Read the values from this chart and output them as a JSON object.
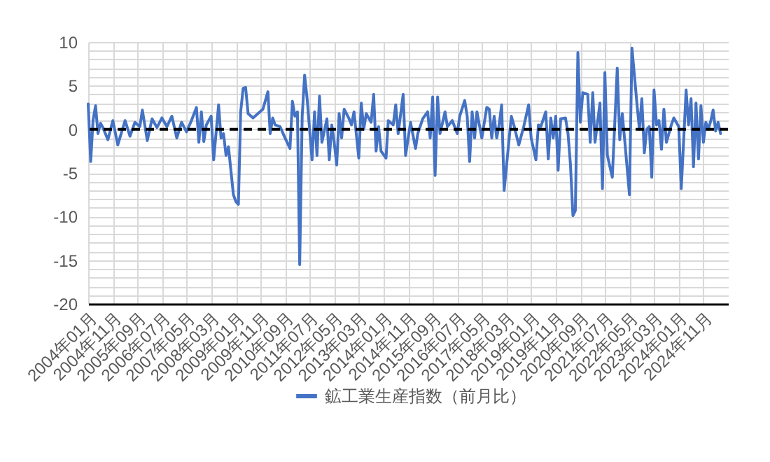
{
  "chart_data": {
    "type": "line",
    "legend": "bottom",
    "grid": true,
    "line_style": "solid",
    "marker": "none",
    "xlim": [
      "2004-01",
      "2025-09"
    ],
    "ylim": [
      -20,
      10
    ],
    "xticks": [
      {
        "value": "2004-01",
        "label": "2004年01月"
      },
      {
        "value": "2004-11",
        "label": "2004年11月"
      },
      {
        "value": "2005-09",
        "label": "2005年09月"
      },
      {
        "value": "2006-07",
        "label": "2006年07月"
      },
      {
        "value": "2007-05",
        "label": "2007年05月"
      },
      {
        "value": "2008-03",
        "label": "2008年03月"
      },
      {
        "value": "2009-01",
        "label": "2009年01月"
      },
      {
        "value": "2009-11",
        "label": "2009年11月"
      },
      {
        "value": "2010-09",
        "label": "2010年09月"
      },
      {
        "value": "2011-07",
        "label": "2011年07月"
      },
      {
        "value": "2012-05",
        "label": "2012年05月"
      },
      {
        "value": "2013-03",
        "label": "2013年03月"
      },
      {
        "value": "2014-01",
        "label": "2014年01月"
      },
      {
        "value": "2014-11",
        "label": "2014年11月"
      },
      {
        "value": "2015-09",
        "label": "2015年09月"
      },
      {
        "value": "2016-07",
        "label": "2016年07月"
      },
      {
        "value": "2017-05",
        "label": "2017年05月"
      },
      {
        "value": "2018-03",
        "label": "2018年03月"
      },
      {
        "value": "2019-01",
        "label": "2019年01月"
      },
      {
        "value": "2019-11",
        "label": "2019年11月"
      },
      {
        "value": "2020-09",
        "label": "2020年09月"
      },
      {
        "value": "2021-07",
        "label": "2021年07月"
      },
      {
        "value": "2022-05",
        "label": "2022年05月"
      },
      {
        "value": "2023-03",
        "label": "2023年03月"
      },
      {
        "value": "2024-01",
        "label": "2024年01月"
      },
      {
        "value": "2024-11",
        "label": "2024年11月"
      }
    ],
    "yticks": [
      -20,
      {
        "value": -19,
        "label": null
      },
      {
        "value": -18,
        "label": null
      },
      {
        "value": -17,
        "label": null
      },
      {
        "value": -16,
        "label": null
      },
      -15,
      {
        "value": -14,
        "label": null
      },
      {
        "value": -13,
        "label": null
      },
      {
        "value": -12,
        "label": null
      },
      {
        "value": -11,
        "label": null
      },
      -10,
      {
        "value": -9,
        "label": null
      },
      {
        "value": -8,
        "label": null
      },
      {
        "value": -7,
        "label": null
      },
      {
        "value": -6,
        "label": null
      },
      -5,
      {
        "value": -4,
        "label": null
      },
      {
        "value": -3,
        "label": null
      },
      {
        "value": -2,
        "label": null
      },
      {
        "value": -1,
        "label": null
      },
      0,
      {
        "value": 1,
        "label": null
      },
      {
        "value": 2,
        "label": null
      },
      {
        "value": 3,
        "label": null
      },
      {
        "value": 4,
        "label": null
      },
      5,
      {
        "value": 6,
        "label": null
      },
      {
        "value": 7,
        "label": null
      },
      {
        "value": 8,
        "label": null
      },
      {
        "value": 9,
        "label": null
      },
      10
    ],
    "ref_lines": [
      {
        "axis": "y",
        "value": 0,
        "color": "#000000",
        "line_style": "dashed"
      }
    ],
    "series": [
      {
        "name": "鉱工業生産指数（前月比）",
        "color": "#4472c4",
        "x": [
          "2004-01",
          "2004-02",
          "2004-03",
          "2004-04",
          "2004-05",
          "2004-06",
          "2004-07",
          "2004-08",
          "2004-09",
          "2004-11",
          "2005-01",
          "2005-04",
          "2005-06",
          "2005-08",
          "2005-10",
          "2005-11",
          "2006-01",
          "2006-03",
          "2006-05",
          "2006-07",
          "2006-09",
          "2006-11",
          "2007-01",
          "2007-03",
          "2007-05",
          "2007-07",
          "2007-09",
          "2007-10",
          "2007-11",
          "2007-12",
          "2008-01",
          "2008-03",
          "2008-04",
          "2008-06",
          "2008-07",
          "2008-08",
          "2008-09",
          "2008-10",
          "2008-12",
          "2009-01",
          "2009-02",
          "2009-03",
          "2009-04",
          "2009-05",
          "2009-06",
          "2009-08",
          "2009-10",
          "2009-12",
          "2010-02",
          "2010-03",
          "2010-04",
          "2010-05",
          "2010-07",
          "2010-09",
          "2010-11",
          "2010-12",
          "2011-01",
          "2011-02",
          "2011-03",
          "2011-04",
          "2011-05",
          "2011-06",
          "2011-08",
          "2011-09",
          "2011-10",
          "2011-11",
          "2011-12",
          "2012-02",
          "2012-03",
          "2012-04",
          "2012-05",
          "2012-06",
          "2012-07",
          "2012-08",
          "2012-09",
          "2012-11",
          "2012-12",
          "2013-01",
          "2013-03",
          "2013-04",
          "2013-05",
          "2013-06",
          "2013-08",
          "2013-09",
          "2013-10",
          "2013-11",
          "2013-12",
          "2014-02",
          "2014-03",
          "2014-05",
          "2014-06",
          "2014-07",
          "2014-09",
          "2014-10",
          "2014-12",
          "2015-02",
          "2015-03",
          "2015-05",
          "2015-07",
          "2015-08",
          "2015-09",
          "2015-10",
          "2015-11",
          "2015-12",
          "2016-02",
          "2016-03",
          "2016-05",
          "2016-07",
          "2016-08",
          "2016-10",
          "2016-11",
          "2016-12",
          "2017-01",
          "2017-02",
          "2017-03",
          "2017-05",
          "2017-07",
          "2017-08",
          "2017-09",
          "2017-10",
          "2017-11",
          "2017-12",
          "2018-01",
          "2018-02",
          "2018-05",
          "2018-06",
          "2018-08",
          "2018-10",
          "2018-12",
          "2019-01",
          "2019-03",
          "2019-04",
          "2019-05",
          "2019-07",
          "2019-08",
          "2019-09",
          "2019-10",
          "2019-11",
          "2019-12",
          "2020-01",
          "2020-03",
          "2020-04",
          "2020-05",
          "2020-06",
          "2020-07",
          "2020-08",
          "2020-09",
          "2020-10",
          "2020-12",
          "2021-01",
          "2021-02",
          "2021-03",
          "2021-05",
          "2021-06",
          "2021-07",
          "2021-08",
          "2021-10",
          "2021-12",
          "2022-01",
          "2022-02",
          "2022-03",
          "2022-05",
          "2022-06",
          "2022-08",
          "2022-09",
          "2022-10",
          "2022-11",
          "2022-12",
          "2023-01",
          "2023-02",
          "2023-03",
          "2023-04",
          "2023-05",
          "2023-06",
          "2023-07",
          "2023-08",
          "2023-10",
          "2023-11",
          "2024-01",
          "2024-02",
          "2024-04",
          "2024-05",
          "2024-06",
          "2024-07",
          "2024-08",
          "2024-09",
          "2024-10",
          "2024-11",
          "2024-12",
          "2025-01",
          "2025-02",
          "2025-03",
          "2025-04",
          "2025-05",
          "2025-06"
        ],
        "values": [
          2.9,
          -3.7,
          1.0,
          2.7,
          -0.5,
          0.7,
          0.2,
          -0.5,
          -1.2,
          1.0,
          -1.8,
          1.0,
          -0.8,
          0.8,
          0.3,
          2.2,
          -1.3,
          1.2,
          0.2,
          1.3,
          0.3,
          1.5,
          -1.0,
          0.8,
          -0.3,
          1.0,
          2.5,
          -1.5,
          2.0,
          -1.4,
          0.5,
          1.5,
          -3.5,
          2.8,
          -1.0,
          -0.5,
          -3.0,
          -2.0,
          -7.5,
          -8.3,
          -8.6,
          2.0,
          4.7,
          4.8,
          1.8,
          1.3,
          1.8,
          2.3,
          4.3,
          -0.5,
          1.3,
          0.5,
          0.3,
          -1.0,
          -2.2,
          3.2,
          1.5,
          2.0,
          -15.5,
          1.5,
          6.2,
          3.5,
          -3.5,
          2.0,
          -3.0,
          3.8,
          -1.5,
          1.2,
          -3.5,
          0.5,
          -1.5,
          -4.1,
          1.8,
          -1.0,
          2.3,
          1.2,
          0.5,
          2.0,
          -3.3,
          3.0,
          0.0,
          1.8,
          0.8,
          4.0,
          -2.5,
          0.3,
          -2.5,
          -3.3,
          1.0,
          0.5,
          2.8,
          -0.5,
          4.0,
          -3.0,
          0.8,
          -2.2,
          -0.5,
          1.2,
          2.0,
          -1.0,
          3.7,
          -5.3,
          3.7,
          -0.5,
          2.0,
          0.3,
          1.0,
          -0.5,
          1.5,
          3.3,
          1.5,
          -3.7,
          2.0,
          -1.0,
          2.0,
          -1.0,
          2.5,
          2.3,
          -1.0,
          1.5,
          -1.0,
          0.5,
          2.8,
          -7.0,
          1.5,
          0.5,
          -1.8,
          0.3,
          2.8,
          -1.0,
          -3.5,
          0.5,
          0.3,
          2.0,
          -3.4,
          1.3,
          -1.0,
          1.5,
          -4.7,
          1.2,
          1.3,
          -0.5,
          -4.0,
          -9.9,
          -9.3,
          8.8,
          0.8,
          4.2,
          4.0,
          -1.5,
          4.2,
          -1.5,
          3.0,
          -6.8,
          6.5,
          -3.0,
          -5.5,
          7.0,
          -1.2,
          1.8,
          -1.0,
          -7.5,
          9.3,
          3.0,
          0.0,
          3.5,
          -2.7,
          0.0,
          0.3,
          -5.5,
          4.5,
          0.5,
          1.0,
          -2.3,
          2.3,
          -1.5,
          0.5,
          1.3,
          0.3,
          -6.8,
          4.5,
          0.5,
          3.5,
          -4.3,
          3.0,
          -3.4,
          2.7,
          -1.5,
          0.8,
          0.0,
          1.0,
          2.2,
          -0.2,
          0.8,
          -0.5
        ]
      }
    ]
  }
}
